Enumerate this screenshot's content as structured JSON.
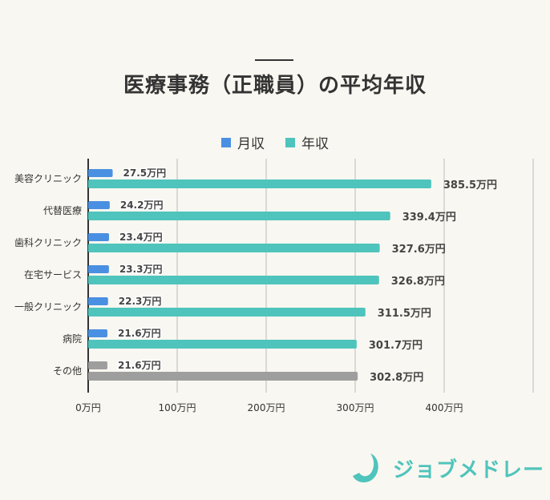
{
  "title": "医療事務（正職員）の平均年収",
  "brand": "ジョブメドレー",
  "chart_data": {
    "type": "bar",
    "orientation": "horizontal",
    "categories": [
      "美容クリニック",
      "代替医療",
      "歯科クリニック",
      "在宅サービス",
      "一般クリニック",
      "病院",
      "その他"
    ],
    "series": [
      {
        "name": "月収",
        "values": [
          27.5,
          24.2,
          23.4,
          23.3,
          22.3,
          21.6,
          21.6
        ],
        "labels": [
          "27.5万円",
          "24.2万円",
          "23.4万円",
          "23.3万円",
          "22.3万円",
          "21.6万円",
          "21.6万円"
        ],
        "color": "#4a90e2"
      },
      {
        "name": "年収",
        "values": [
          385.5,
          339.4,
          327.6,
          326.8,
          311.5,
          301.7,
          302.8
        ],
        "labels": [
          "385.5万円",
          "339.4万円",
          "327.6万円",
          "326.8万円",
          "311.5万円",
          "301.7万円",
          "302.8万円"
        ],
        "color": "#4fc4bc"
      }
    ],
    "highlight_color_other": "#9e9e9e",
    "xticks": [
      "0万円",
      "100万円",
      "200万円",
      "300万円",
      "400万円"
    ],
    "xtick_values": [
      0,
      100,
      200,
      300,
      400
    ],
    "xlim": [
      0,
      500
    ],
    "grid": true,
    "legend": "top-center"
  }
}
